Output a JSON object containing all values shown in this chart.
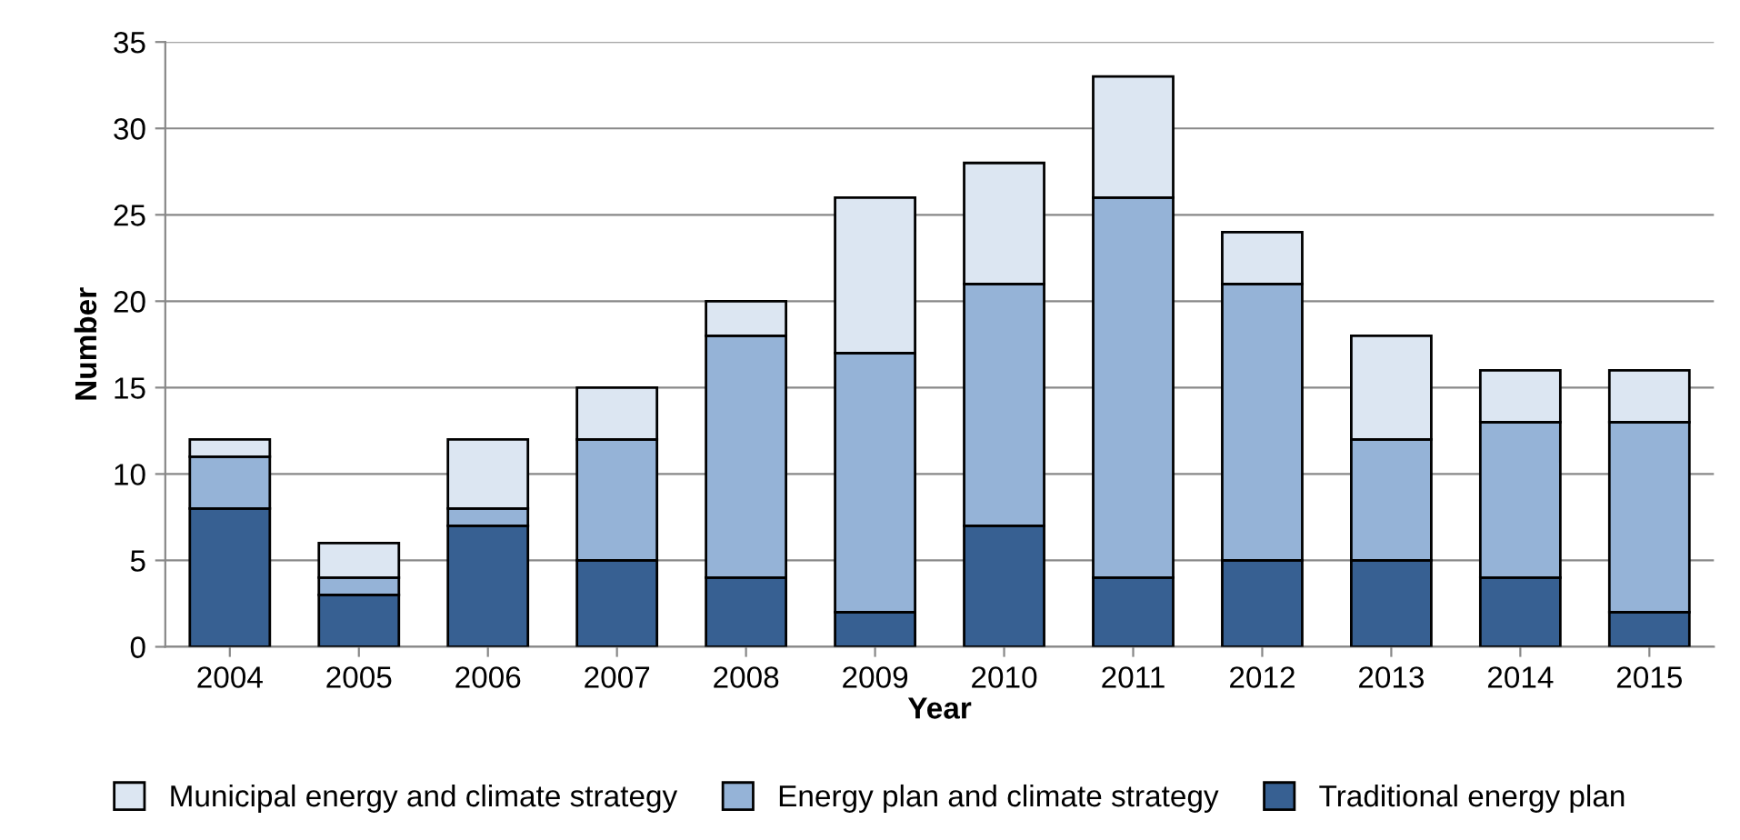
{
  "chart_data": {
    "type": "bar",
    "stacked": true,
    "xlabel": "Year",
    "ylabel": "Number",
    "categories": [
      "2004",
      "2005",
      "2006",
      "2007",
      "2008",
      "2009",
      "2010",
      "2011",
      "2012",
      "2013",
      "2014",
      "2015"
    ],
    "series": [
      {
        "name": "Traditional energy plan",
        "color": "#376092",
        "values": [
          8,
          3,
          7,
          5,
          4,
          2,
          7,
          4,
          5,
          5,
          4,
          2
        ]
      },
      {
        "name": "Energy plan and climate strategy",
        "color": "#95b3d7",
        "values": [
          3,
          1,
          1,
          7,
          14,
          15,
          14,
          22,
          16,
          7,
          9,
          11
        ]
      },
      {
        "name": "Municipal energy and climate strategy",
        "color": "#dce6f2",
        "values": [
          1,
          2,
          4,
          3,
          2,
          9,
          7,
          7,
          3,
          6,
          3,
          3
        ]
      }
    ],
    "ylim": [
      0,
      35
    ],
    "yticks": [
      0,
      5,
      10,
      15,
      20,
      25,
      30,
      35
    ],
    "grid": "y",
    "legend": "bottom"
  }
}
